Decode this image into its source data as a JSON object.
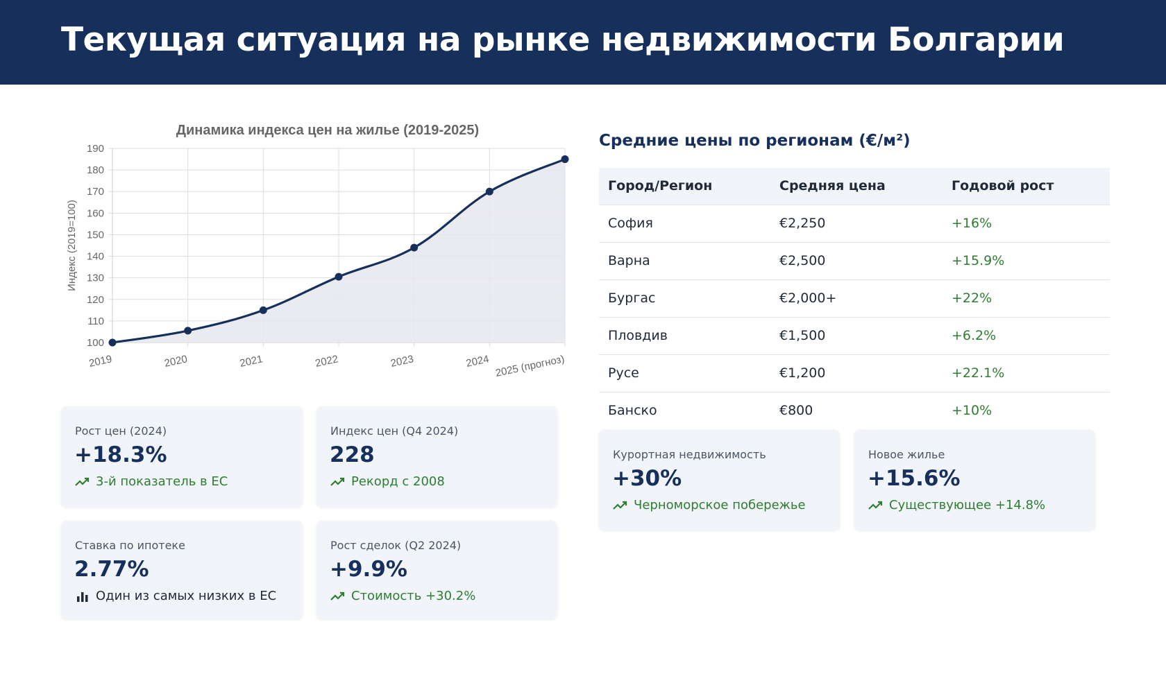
{
  "header": {
    "title": "Текущая ситуация на рынке недвижимости Болгарии"
  },
  "chart_data": {
    "type": "line",
    "title": "Динамика индекса цен на жилье (2019-2025)",
    "ylabel": "Индекс (2019=100)",
    "xlabel": "",
    "categories": [
      "2019",
      "2020",
      "2021",
      "2022",
      "2023",
      "2024",
      "2025 (прогноз)"
    ],
    "series": [
      {
        "values": [
          100,
          105.5,
          115,
          130.5,
          144,
          170,
          185
        ]
      }
    ],
    "ylim": [
      100,
      190
    ],
    "yticks": [
      "100",
      "110",
      "120",
      "130",
      "140",
      "150",
      "160",
      "170",
      "180",
      "190"
    ],
    "grid": true,
    "fill": true,
    "colors": {
      "line": "#17305b",
      "fill": "#e6e8ed",
      "grid": "#dddddd"
    }
  },
  "stats_left": [
    {
      "label": "Рост цен (2024)",
      "value": "+18.3%",
      "note": "3-й показатель в ЕС",
      "icon": "trend-up-icon"
    },
    {
      "label": "Индекс цен (Q4 2024)",
      "value": "228",
      "note": "Рекорд с 2008",
      "icon": "trend-up-icon"
    },
    {
      "label": "Ставка по ипотеке",
      "value": "2.77%",
      "note": "Один из самых низких в ЕС",
      "icon": "bar-chart-icon"
    },
    {
      "label": "Рост сделок (Q2 2024)",
      "value": "+9.9%",
      "note": "Стоимость +30.2%",
      "icon": "trend-up-icon"
    }
  ],
  "regions": {
    "title": "Средние цены по регионам (€/м²)",
    "headers": [
      "Город/Регион",
      "Средняя цена",
      "Годовой рост"
    ],
    "rows": [
      [
        "София",
        "€2,250",
        "+16%"
      ],
      [
        "Варна",
        "€2,500",
        "+15.9%"
      ],
      [
        "Бургас",
        "€2,000+",
        "+22%"
      ],
      [
        "Пловдив",
        "€1,500",
        "+6.2%"
      ],
      [
        "Русе",
        "€1,200",
        "+22.1%"
      ],
      [
        "Банско",
        "€800",
        "+10%"
      ]
    ]
  },
  "stats_right": [
    {
      "label": "Курортная недвижимость",
      "value": "+30%",
      "note": "Черноморское побережье",
      "icon": "trend-up-icon"
    },
    {
      "label": "Новое жилье",
      "value": "+15.6%",
      "note": "Существующее +14.8%",
      "icon": "trend-up-icon"
    }
  ],
  "colors": {
    "header_bg": "#17305b",
    "accent_green": "#2e7d32",
    "card_bg": "#f1f4f8"
  }
}
